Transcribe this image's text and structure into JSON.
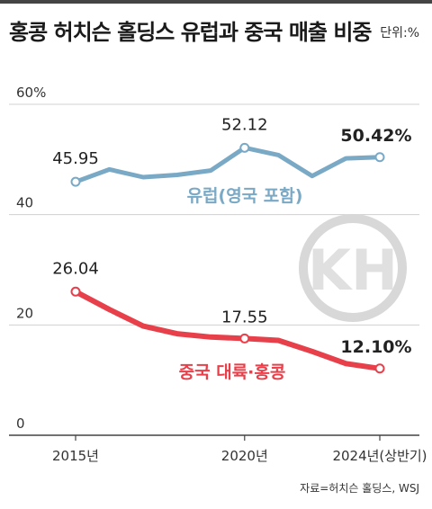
{
  "header": {
    "title": "홍콩 허치슨 홀딩스 유럽과 중국 매출 비중",
    "unit": "단위:%"
  },
  "colors": {
    "europe": "#7aa9c6",
    "china": "#e8404a",
    "grid": "#d0d0d0",
    "axis": "#444444"
  },
  "logo_text": "KH",
  "source": "자료=허치슨 홀딩스, WSJ",
  "chart_data": {
    "type": "line",
    "title": "홍콩 허치슨 홀딩스 유럽과 중국 매출 비중",
    "unit": "%",
    "ylim": [
      0,
      60
    ],
    "y_ticks": [
      {
        "value": 0,
        "label": "0"
      },
      {
        "value": 20,
        "label": "20"
      },
      {
        "value": 40,
        "label": "40"
      },
      {
        "value": 60,
        "label": "60%"
      }
    ],
    "x": [
      "2015",
      "2016",
      "2017",
      "2018",
      "2019",
      "2020",
      "2021",
      "2022",
      "2023",
      "2024(상반기)"
    ],
    "x_tick_labels": [
      {
        "index": 0,
        "label": "2015년"
      },
      {
        "index": 5,
        "label": "2020년"
      },
      {
        "index": 9,
        "label": "2024년(상반기)"
      }
    ],
    "grid": true,
    "series": [
      {
        "name": "유럽(영국 포함)",
        "values": [
          45.95,
          48.2,
          46.8,
          47.2,
          48.0,
          52.12,
          50.8,
          47.0,
          50.2,
          50.42
        ],
        "point_labels": [
          {
            "index": 0,
            "label": "45.95",
            "bold": false
          },
          {
            "index": 5,
            "label": "52.12",
            "bold": false
          },
          {
            "index": 9,
            "label": "50.42%",
            "bold": true
          }
        ]
      },
      {
        "name": "중국 대륙·홍콩",
        "values": [
          26.04,
          22.8,
          19.8,
          18.4,
          17.8,
          17.55,
          17.2,
          15.2,
          13.0,
          12.1
        ],
        "point_labels": [
          {
            "index": 0,
            "label": "26.04",
            "bold": false
          },
          {
            "index": 5,
            "label": "17.55",
            "bold": false
          },
          {
            "index": 9,
            "label": "12.10%",
            "bold": true
          }
        ]
      }
    ]
  }
}
